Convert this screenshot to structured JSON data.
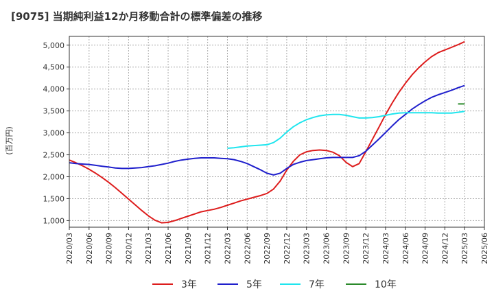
{
  "chart_data": {
    "type": "line",
    "title": "[9075]  当期純利益12か月移動合計の標準偏差の推移",
    "ylabel": "(百万円)",
    "xlabel": "",
    "ylim": [
      850,
      5200
    ],
    "yticks": [
      1000,
      1500,
      2000,
      2500,
      3000,
      3500,
      4000,
      4500,
      5000
    ],
    "ytick_labels": [
      "1,000",
      "1,500",
      "2,000",
      "2,500",
      "3,000",
      "3,500",
      "4,000",
      "4,500",
      "5,000"
    ],
    "xticks": [
      "2020/03",
      "2020/06",
      "2020/09",
      "2020/12",
      "2021/03",
      "2021/06",
      "2021/09",
      "2021/12",
      "2022/03",
      "2022/06",
      "2022/09",
      "2022/12",
      "2023/03",
      "2023/06",
      "2023/09",
      "2023/12",
      "2024/03",
      "2024/06",
      "2024/09",
      "2024/12",
      "2025/03",
      "2025/06"
    ],
    "grid": true,
    "legend_position": "bottom",
    "series": [
      {
        "name": "3年",
        "color": "#dd1c1c",
        "points": [
          [
            "2020/03",
            2380
          ],
          [
            "2020/04",
            2320
          ],
          [
            "2020/05",
            2250
          ],
          [
            "2020/06",
            2170
          ],
          [
            "2020/07",
            2080
          ],
          [
            "2020/08",
            1980
          ],
          [
            "2020/09",
            1870
          ],
          [
            "2020/10",
            1750
          ],
          [
            "2020/11",
            1620
          ],
          [
            "2020/12",
            1490
          ],
          [
            "2021/01",
            1360
          ],
          [
            "2021/02",
            1230
          ],
          [
            "2021/03",
            1110
          ],
          [
            "2021/04",
            1010
          ],
          [
            "2021/05",
            950
          ],
          [
            "2021/06",
            960
          ],
          [
            "2021/07",
            1000
          ],
          [
            "2021/08",
            1050
          ],
          [
            "2021/09",
            1100
          ],
          [
            "2021/10",
            1150
          ],
          [
            "2021/11",
            1200
          ],
          [
            "2021/12",
            1230
          ],
          [
            "2022/01",
            1260
          ],
          [
            "2022/02",
            1300
          ],
          [
            "2022/03",
            1350
          ],
          [
            "2022/04",
            1400
          ],
          [
            "2022/05",
            1450
          ],
          [
            "2022/06",
            1490
          ],
          [
            "2022/07",
            1530
          ],
          [
            "2022/08",
            1570
          ],
          [
            "2022/09",
            1620
          ],
          [
            "2022/10",
            1720
          ],
          [
            "2022/11",
            1900
          ],
          [
            "2022/12",
            2150
          ],
          [
            "2023/01",
            2350
          ],
          [
            "2023/02",
            2500
          ],
          [
            "2023/03",
            2570
          ],
          [
            "2023/04",
            2600
          ],
          [
            "2023/05",
            2610
          ],
          [
            "2023/06",
            2600
          ],
          [
            "2023/07",
            2560
          ],
          [
            "2023/08",
            2480
          ],
          [
            "2023/09",
            2330
          ],
          [
            "2023/10",
            2230
          ],
          [
            "2023/11",
            2300
          ],
          [
            "2023/12",
            2570
          ],
          [
            "2024/01",
            2850
          ],
          [
            "2024/02",
            3130
          ],
          [
            "2024/03",
            3420
          ],
          [
            "2024/04",
            3680
          ],
          [
            "2024/05",
            3920
          ],
          [
            "2024/06",
            4130
          ],
          [
            "2024/07",
            4320
          ],
          [
            "2024/08",
            4480
          ],
          [
            "2024/09",
            4620
          ],
          [
            "2024/10",
            4740
          ],
          [
            "2024/11",
            4830
          ],
          [
            "2024/12",
            4890
          ],
          [
            "2025/01",
            4950
          ],
          [
            "2025/02",
            5010
          ],
          [
            "2025/03",
            5080
          ]
        ]
      },
      {
        "name": "5年",
        "color": "#1f1fcc",
        "points": [
          [
            "2020/03",
            2320
          ],
          [
            "2020/04",
            2300
          ],
          [
            "2020/05",
            2290
          ],
          [
            "2020/06",
            2280
          ],
          [
            "2020/07",
            2260
          ],
          [
            "2020/08",
            2240
          ],
          [
            "2020/09",
            2220
          ],
          [
            "2020/10",
            2200
          ],
          [
            "2020/11",
            2190
          ],
          [
            "2020/12",
            2190
          ],
          [
            "2021/01",
            2200
          ],
          [
            "2021/02",
            2210
          ],
          [
            "2021/03",
            2230
          ],
          [
            "2021/04",
            2250
          ],
          [
            "2021/05",
            2280
          ],
          [
            "2021/06",
            2310
          ],
          [
            "2021/07",
            2350
          ],
          [
            "2021/08",
            2380
          ],
          [
            "2021/09",
            2400
          ],
          [
            "2021/10",
            2420
          ],
          [
            "2021/11",
            2430
          ],
          [
            "2021/12",
            2430
          ],
          [
            "2022/01",
            2430
          ],
          [
            "2022/02",
            2420
          ],
          [
            "2022/03",
            2410
          ],
          [
            "2022/04",
            2390
          ],
          [
            "2022/05",
            2350
          ],
          [
            "2022/06",
            2300
          ],
          [
            "2022/07",
            2230
          ],
          [
            "2022/08",
            2160
          ],
          [
            "2022/09",
            2080
          ],
          [
            "2022/10",
            2040
          ],
          [
            "2022/11",
            2080
          ],
          [
            "2022/12",
            2190
          ],
          [
            "2023/01",
            2280
          ],
          [
            "2023/02",
            2330
          ],
          [
            "2023/03",
            2370
          ],
          [
            "2023/04",
            2390
          ],
          [
            "2023/05",
            2410
          ],
          [
            "2023/06",
            2430
          ],
          [
            "2023/07",
            2440
          ],
          [
            "2023/08",
            2440
          ],
          [
            "2023/09",
            2440
          ],
          [
            "2023/10",
            2440
          ],
          [
            "2023/11",
            2480
          ],
          [
            "2023/12",
            2580
          ],
          [
            "2024/01",
            2720
          ],
          [
            "2024/02",
            2860
          ],
          [
            "2024/03",
            3010
          ],
          [
            "2024/04",
            3160
          ],
          [
            "2024/05",
            3300
          ],
          [
            "2024/06",
            3420
          ],
          [
            "2024/07",
            3540
          ],
          [
            "2024/08",
            3640
          ],
          [
            "2024/09",
            3730
          ],
          [
            "2024/10",
            3810
          ],
          [
            "2024/11",
            3870
          ],
          [
            "2024/12",
            3920
          ],
          [
            "2025/01",
            3970
          ],
          [
            "2025/02",
            4030
          ],
          [
            "2025/03",
            4080
          ]
        ]
      },
      {
        "name": "7年",
        "color": "#1fe5ee",
        "points": [
          [
            "2022/03",
            2650
          ],
          [
            "2022/04",
            2660
          ],
          [
            "2022/05",
            2680
          ],
          [
            "2022/06",
            2700
          ],
          [
            "2022/07",
            2710
          ],
          [
            "2022/08",
            2720
          ],
          [
            "2022/09",
            2730
          ],
          [
            "2022/10",
            2780
          ],
          [
            "2022/11",
            2880
          ],
          [
            "2022/12",
            3020
          ],
          [
            "2023/01",
            3140
          ],
          [
            "2023/02",
            3230
          ],
          [
            "2023/03",
            3300
          ],
          [
            "2023/04",
            3350
          ],
          [
            "2023/05",
            3390
          ],
          [
            "2023/06",
            3410
          ],
          [
            "2023/07",
            3420
          ],
          [
            "2023/08",
            3420
          ],
          [
            "2023/09",
            3400
          ],
          [
            "2023/10",
            3370
          ],
          [
            "2023/11",
            3340
          ],
          [
            "2023/12",
            3340
          ],
          [
            "2024/01",
            3350
          ],
          [
            "2024/02",
            3370
          ],
          [
            "2024/03",
            3400
          ],
          [
            "2024/04",
            3430
          ],
          [
            "2024/05",
            3450
          ],
          [
            "2024/06",
            3460
          ],
          [
            "2024/07",
            3460
          ],
          [
            "2024/08",
            3460
          ],
          [
            "2024/09",
            3460
          ],
          [
            "2024/10",
            3460
          ],
          [
            "2024/11",
            3450
          ],
          [
            "2024/12",
            3450
          ],
          [
            "2025/01",
            3450
          ],
          [
            "2025/02",
            3470
          ],
          [
            "2025/03",
            3490
          ]
        ]
      },
      {
        "name": "10年",
        "color": "#2a8a2a",
        "points": [
          [
            "2025/02",
            3660
          ],
          [
            "2025/03",
            3660
          ]
        ]
      }
    ]
  }
}
